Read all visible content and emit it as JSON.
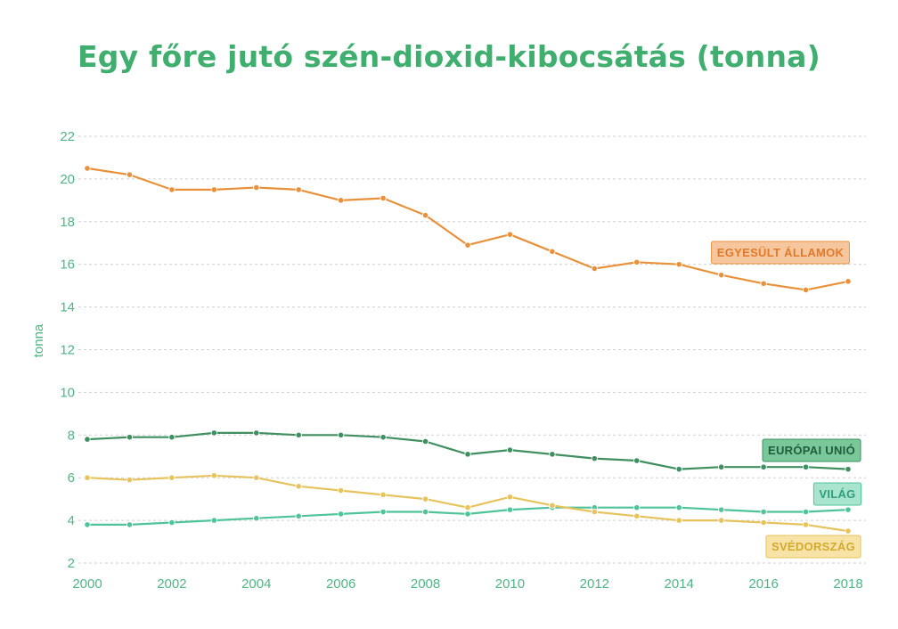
{
  "chart_data": {
    "type": "line",
    "title": "Egy főre jutó szén-dioxid-kibocsátás (tonna)",
    "xlabel": "",
    "ylabel": "tonna",
    "ylim": [
      2,
      22
    ],
    "xlim": [
      2000,
      2018
    ],
    "yticks": [
      "2",
      "4",
      "6",
      "8",
      "10",
      "12",
      "14",
      "16",
      "18",
      "20",
      "22"
    ],
    "xticks": [
      "2000",
      "2002",
      "2004",
      "2006",
      "2008",
      "2010",
      "2012",
      "2014",
      "2016",
      "2018"
    ],
    "grid": true,
    "x": [
      2000,
      2001,
      2002,
      2003,
      2004,
      2005,
      2006,
      2007,
      2008,
      2009,
      2010,
      2011,
      2012,
      2013,
      2014,
      2015,
      2016,
      2017,
      2018
    ],
    "series": [
      {
        "name": "EGYESÜLT ÁLLAMOK",
        "color": "#e8913a",
        "tag_fill": "#f6c79e",
        "tag_stroke": "#e8913a",
        "tag_text_color": "#e07a2a",
        "values": [
          20.5,
          20.2,
          19.5,
          19.5,
          19.6,
          19.5,
          19.0,
          19.1,
          18.3,
          16.9,
          17.4,
          16.6,
          15.8,
          16.1,
          16.0,
          15.5,
          15.1,
          14.8,
          15.2
        ]
      },
      {
        "name": "EURÓPAI UNIÓ",
        "color": "#3f8f61",
        "tag_fill": "#7ac79a",
        "tag_stroke": "#3f8f61",
        "tag_text_color": "#1f5e3c",
        "values": [
          7.8,
          7.9,
          7.9,
          8.1,
          8.1,
          8.0,
          8.0,
          7.9,
          7.7,
          7.1,
          7.3,
          7.1,
          6.9,
          6.8,
          6.4,
          6.5,
          6.5,
          6.5,
          6.4
        ]
      },
      {
        "name": "VILÁG",
        "color": "#4fc49a",
        "tag_fill": "#a9e4cf",
        "tag_stroke": "#4fc49a",
        "tag_text_color": "#2f9e78",
        "values": [
          3.8,
          3.8,
          3.9,
          4.0,
          4.1,
          4.2,
          4.3,
          4.4,
          4.4,
          4.3,
          4.5,
          4.6,
          4.6,
          4.6,
          4.6,
          4.5,
          4.4,
          4.4,
          4.5
        ]
      },
      {
        "name": "SVÉDORSZÁG",
        "color": "#e6c35c",
        "tag_fill": "#f7e3a6",
        "tag_stroke": "#e6c35c",
        "tag_text_color": "#d4a92f",
        "values": [
          6.0,
          5.9,
          6.0,
          6.1,
          6.0,
          5.6,
          5.4,
          5.2,
          5.0,
          4.6,
          5.1,
          4.7,
          4.4,
          4.2,
          4.0,
          4.0,
          3.9,
          3.8,
          3.5
        ]
      }
    ]
  }
}
